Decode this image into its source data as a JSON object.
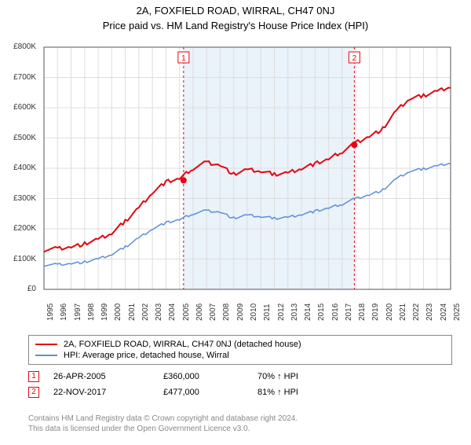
{
  "title_line1": "2A, FOXFIELD ROAD, WIRRAL, CH47 0NJ",
  "title_line2": "Price paid vs. HM Land Registry's House Price Index (HPI)",
  "chart": {
    "type": "line",
    "background_color": "#ffffff",
    "grid_color": "#dddddd",
    "axis_color": "#555555",
    "text_color": "#333333",
    "label_fontsize": 10,
    "years": [
      1995,
      1996,
      1997,
      1998,
      1999,
      2000,
      2001,
      2002,
      2003,
      2004,
      2005,
      2006,
      2007,
      2008,
      2009,
      2010,
      2011,
      2012,
      2013,
      2014,
      2015,
      2016,
      2017,
      2018,
      2019,
      2020,
      2021,
      2022,
      2023,
      2024,
      2025
    ],
    "ylim": [
      0,
      800000
    ],
    "ytick_step": 100000,
    "ytick_labels": [
      "£0",
      "£100K",
      "£200K",
      "£300K",
      "£400K",
      "£500K",
      "£600K",
      "£700K",
      "£800K"
    ],
    "shaded_start_year": 2005.3,
    "shaded_end_year": 2017.9,
    "shaded_color": "#eaf2fa",
    "series": [
      {
        "name": "property",
        "label": "2A, FOXFIELD ROAD, WIRRAL, CH47 0NJ (detached house)",
        "color": "#e30613",
        "line_width": 2,
        "values_yearly": [
          130,
          135,
          140,
          150,
          165,
          185,
          225,
          270,
          320,
          355,
          365,
          400,
          420,
          410,
          380,
          395,
          390,
          380,
          385,
          400,
          415,
          430,
          455,
          485,
          505,
          530,
          590,
          630,
          640,
          655,
          670
        ]
      },
      {
        "name": "hpi",
        "label": "HPI: Average price, detached house, Wirral",
        "color": "#5b8fd6",
        "line_width": 1.5,
        "values_yearly": [
          80,
          82,
          85,
          90,
          100,
          115,
          140,
          170,
          200,
          220,
          230,
          250,
          260,
          255,
          235,
          245,
          240,
          235,
          238,
          248,
          258,
          268,
          282,
          300,
          312,
          328,
          365,
          390,
          398,
          408,
          418
        ]
      }
    ],
    "marker_lines": [
      {
        "year": 2005.3,
        "color": "#e30613",
        "label": "1"
      },
      {
        "year": 2017.9,
        "color": "#e30613",
        "label": "2"
      }
    ],
    "marker_points": [
      {
        "year": 2005.3,
        "value": 360,
        "color": "#e30613"
      },
      {
        "year": 2017.9,
        "value": 477,
        "color": "#e30613"
      }
    ]
  },
  "legend": {
    "border_color": "#888888",
    "items": [
      {
        "color": "#e30613",
        "label": "2A, FOXFIELD ROAD, WIRRAL, CH47 0NJ (detached house)"
      },
      {
        "color": "#5b8fd6",
        "label": "HPI: Average price, detached house, Wirral"
      }
    ]
  },
  "transactions": [
    {
      "marker": "1",
      "marker_color": "#e30613",
      "date": "26-APR-2005",
      "price": "£360,000",
      "pct": "70% ↑ HPI"
    },
    {
      "marker": "2",
      "marker_color": "#e30613",
      "date": "22-NOV-2017",
      "price": "£477,000",
      "pct": "81% ↑ HPI"
    }
  ],
  "footer": {
    "line1": "Contains HM Land Registry data © Crown copyright and database right 2024.",
    "line2": "This data is licensed under the Open Government Licence v3.0.",
    "color": "#888888"
  }
}
